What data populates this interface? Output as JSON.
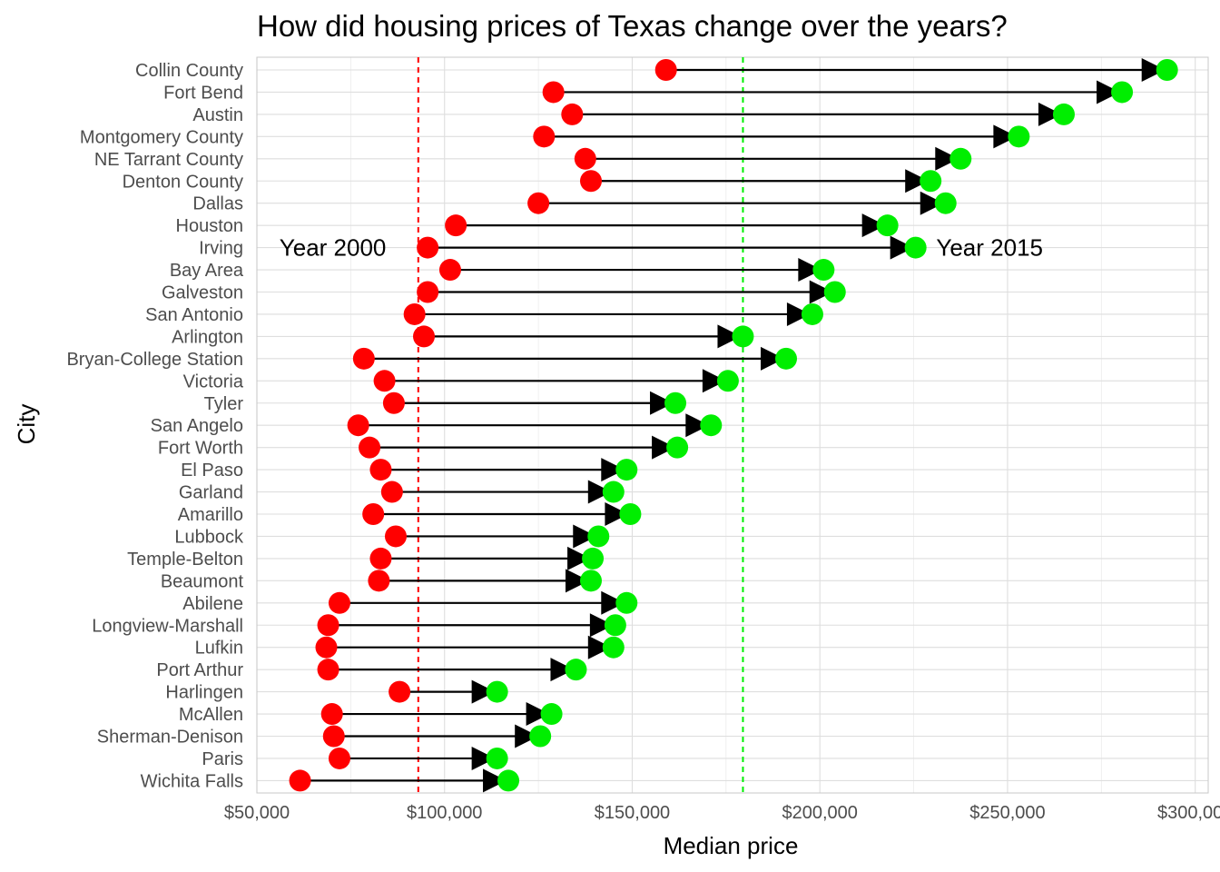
{
  "chart_data": {
    "type": "dumbbell",
    "title": "How did housing prices of Texas change over the years?",
    "xlabel": "Median price",
    "ylabel": "City",
    "xlim": [
      50000,
      300000
    ],
    "x_ticks": [
      50000,
      100000,
      150000,
      200000,
      250000,
      300000
    ],
    "x_tick_labels": [
      "$50,000",
      "$100,000",
      "$150,000",
      "$200,000",
      "$250,000",
      "$300,000"
    ],
    "grid": true,
    "series": [
      {
        "name": "Year 2000",
        "color": "#ff0000"
      },
      {
        "name": "Year 2015",
        "color": "#00ee00"
      }
    ],
    "annotations": [
      {
        "text": "Year 2000",
        "x": 56000,
        "category": "Irving"
      },
      {
        "text": "Year 2015",
        "x": 231000,
        "category": "Irving"
      }
    ],
    "reference_lines": [
      {
        "series": "Year 2000",
        "x": 93000,
        "color": "#ff0000",
        "style": "dashed"
      },
      {
        "series": "Year 2015",
        "x": 179500,
        "color": "#00ee00",
        "style": "dashed"
      }
    ],
    "categories": [
      "Collin County",
      "Fort Bend",
      "Austin",
      "Montgomery County",
      "NE Tarrant County",
      "Denton County",
      "Dallas",
      "Houston",
      "Irving",
      "Bay Area",
      "Galveston",
      "San Antonio",
      "Arlington",
      "Bryan-College Station",
      "Victoria",
      "Tyler",
      "San Angelo",
      "Fort Worth",
      "El Paso",
      "Garland",
      "Amarillo",
      "Lubbock",
      "Temple-Belton",
      "Beaumont",
      "Abilene",
      "Longview-Marshall",
      "Lufkin",
      "Port Arthur",
      "Harlingen",
      "McAllen",
      "Sherman-Denison",
      "Paris",
      "Wichita Falls"
    ],
    "values_2000": [
      159000,
      129000,
      134000,
      126500,
      137500,
      139000,
      125000,
      103000,
      95500,
      101500,
      95500,
      92000,
      94500,
      78500,
      84000,
      86500,
      77000,
      80000,
      83000,
      86000,
      81000,
      87000,
      83000,
      82500,
      72000,
      69000,
      68500,
      69000,
      88000,
      70000,
      70500,
      72000,
      61500
    ],
    "values_2015": [
      292500,
      280500,
      265000,
      253000,
      237500,
      229500,
      233500,
      218000,
      225500,
      201000,
      204000,
      198000,
      179500,
      191000,
      175500,
      161500,
      171000,
      162000,
      148500,
      145000,
      149500,
      141000,
      139500,
      139000,
      148500,
      145500,
      145000,
      135000,
      114000,
      128500,
      125500,
      114000,
      117000
    ]
  }
}
